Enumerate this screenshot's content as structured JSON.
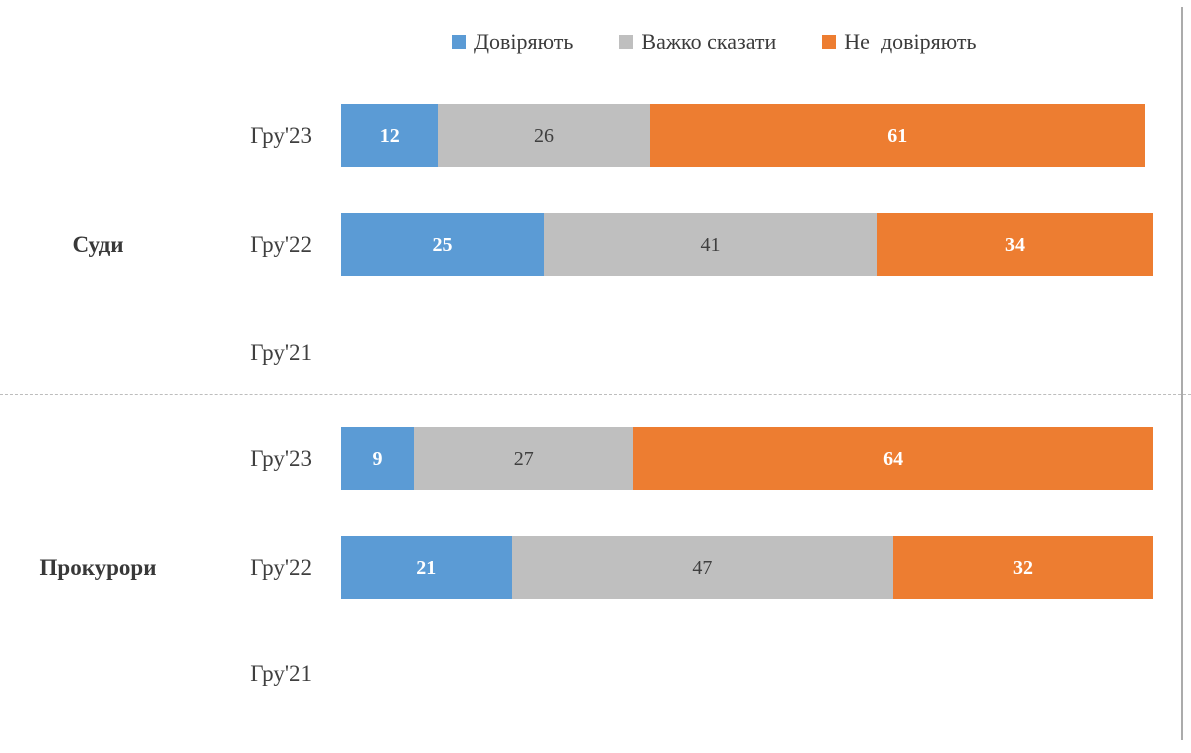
{
  "chart_data": {
    "type": "bar",
    "orientation": "horizontal-stacked",
    "xlim": [
      0,
      100
    ],
    "grid": false,
    "legend_position": "top",
    "legend": [
      {
        "name": "trust",
        "label": "Довіряють",
        "color": "#5B9BD5"
      },
      {
        "name": "hard-to-say",
        "label": "Важко сказати",
        "color": "#BFBFBF"
      },
      {
        "name": "distrust",
        "label": "Не  довіряють",
        "color": "#ED7D31"
      }
    ],
    "groups": [
      {
        "label": "Суди",
        "rows": [
          {
            "period": "Гру'23",
            "values": [
              12,
              26,
              61
            ]
          },
          {
            "period": "Гру'22",
            "values": [
              25,
              41,
              34
            ]
          },
          {
            "period": "Гру'21",
            "values": []
          }
        ]
      },
      {
        "label": "Прокурори",
        "rows": [
          {
            "period": "Гру'23",
            "values": [
              9,
              27,
              64
            ]
          },
          {
            "period": "Гру'22",
            "values": [
              21,
              47,
              32
            ]
          },
          {
            "period": "Гру'21",
            "values": []
          }
        ]
      }
    ],
    "value_label_colors": {
      "on_trust": "#FFFFFF",
      "on_hard_to_say": "#3F3F3F",
      "on_distrust": "#FFFFFF"
    }
  }
}
